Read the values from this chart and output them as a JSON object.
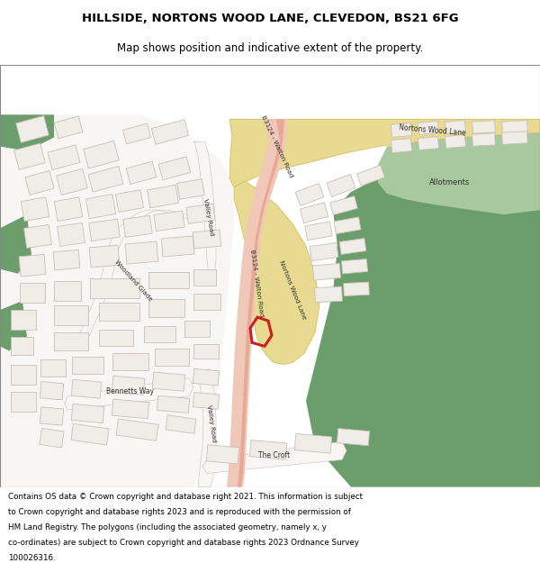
{
  "title_line1": "HILLSIDE, NORTONS WOOD LANE, CLEVEDON, BS21 6FG",
  "title_line2": "Map shows position and indicative extent of the property.",
  "footer_lines": [
    "Contains OS data © Crown copyright and database right 2021. This information is subject",
    "to Crown copyright and database rights 2023 and is reproduced with the permission of",
    "HM Land Registry. The polygons (including the associated geometry, namely x, y",
    "co-ordinates) are subject to Crown copyright and database rights 2023 Ordnance Survey",
    "100026316."
  ],
  "green": "#6b9e6b",
  "light_green": "#8fba8f",
  "allotments_green": "#a8c8a0",
  "beige": "#e8dfd4",
  "white": "#f8f6f4",
  "road_salmon": "#e8a898",
  "road_light": "#f0c8b8",
  "road_yellow": "#e8da90",
  "road_yellow_edge": "#d4c060",
  "building_white": "#f0ece8",
  "building_edge": "#c8c0b8",
  "red_highlight": "#cc2020",
  "text_dark": "#303030"
}
